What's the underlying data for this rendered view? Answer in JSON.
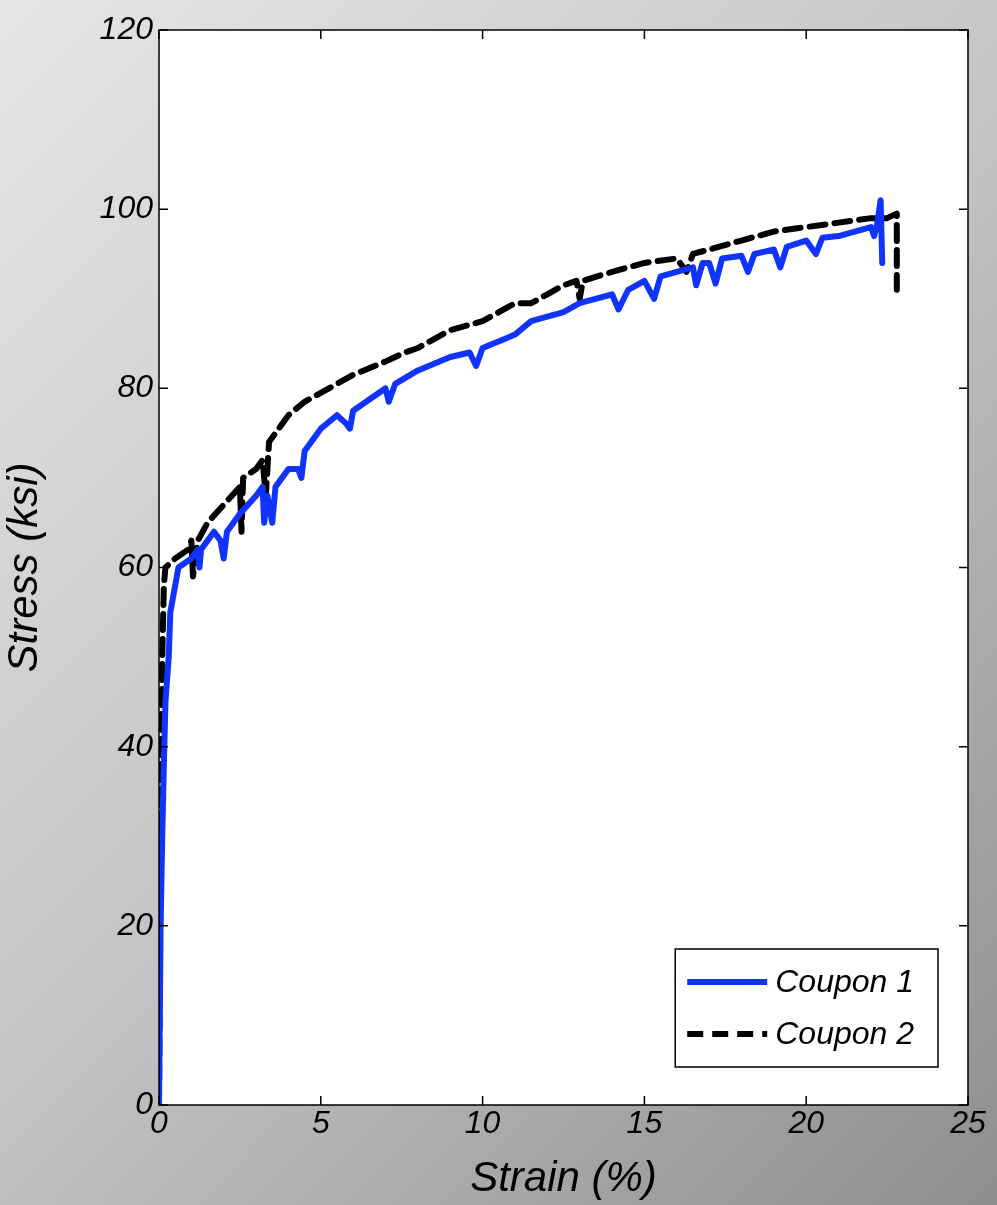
{
  "chart_data": {
    "type": "line",
    "xlabel": "Strain (%)",
    "ylabel": "Stress (ksi)",
    "xlim": [
      0,
      25
    ],
    "xticks": [
      0,
      5,
      10,
      15,
      20,
      25
    ],
    "ylim": [
      0,
      120
    ],
    "yticks": [
      0,
      20,
      40,
      60,
      80,
      100,
      120
    ],
    "grid": false,
    "legend": "bottom right",
    "marker": "none",
    "series": [
      {
        "name": "Coupon 1",
        "color": "#1133ff",
        "line_style": "solid",
        "x": [
          0,
          0.05,
          0.1,
          0.15,
          0.2,
          0.3,
          0.35,
          0.5,
          0.6,
          1.0,
          1.2,
          1.25,
          1.3,
          1.5,
          1.7,
          1.9,
          2.0,
          2.1,
          2.5,
          3.0,
          3.2,
          3.25,
          3.35,
          3.5,
          3.6,
          4.0,
          4.3,
          4.4,
          4.5,
          5.0,
          5.5,
          5.8,
          5.9,
          6.0,
          7.0,
          7.1,
          7.3,
          8.0,
          9.0,
          9.6,
          9.8,
          10,
          11,
          11.5,
          12.5,
          13,
          14,
          14.2,
          14.5,
          15,
          15.3,
          15.5,
          16,
          16.5,
          16.6,
          16.8,
          17,
          17.2,
          17.4,
          18,
          18.2,
          18.4,
          19,
          19.2,
          19.4,
          20,
          20.3,
          20.5,
          21,
          21.5,
          22,
          22.1,
          22.2,
          22.3,
          22.35
        ],
        "values": [
          0,
          20,
          30,
          38,
          45,
          50,
          55,
          58,
          60,
          61,
          62,
          60,
          62,
          63,
          64,
          63,
          61,
          64,
          66,
          68,
          69,
          65,
          68,
          65,
          69,
          71,
          71,
          70,
          73,
          75.5,
          77,
          76,
          75.5,
          77.5,
          80,
          78.5,
          80.5,
          82,
          83.5,
          84,
          82.5,
          84.5,
          86,
          87.5,
          88.5,
          89.5,
          90.5,
          88.8,
          91,
          92,
          90,
          92.5,
          93,
          93.5,
          91.5,
          94,
          94,
          91.7,
          94.5,
          94.8,
          93,
          95,
          95.5,
          93.5,
          95.8,
          96.5,
          95,
          96.8,
          97,
          97.5,
          98,
          97,
          98.5,
          101,
          94
        ]
      },
      {
        "name": "Coupon 2",
        "color": "#000000",
        "line_style": "dashed",
        "x": [
          0,
          0.05,
          0.1,
          0.15,
          0.2,
          0.5,
          0.9,
          1.0,
          1.05,
          1.2,
          1.5,
          2,
          2.5,
          2.55,
          2.6,
          3,
          3.2,
          3.3,
          3.4,
          4,
          4.5,
          5,
          6,
          7,
          7.6,
          8,
          8.5,
          9,
          9.5,
          10,
          10.5,
          11,
          11.5,
          12,
          12.5,
          12.9,
          13,
          13.1,
          14,
          15,
          16,
          16.3,
          16.5,
          17,
          18,
          19,
          20,
          21,
          22,
          22.5,
          22.8,
          22.8
        ],
        "values": [
          0,
          30,
          50,
          58,
          60,
          61,
          62,
          63,
          59,
          63,
          65,
          67,
          69,
          64,
          70,
          71,
          72,
          68,
          74,
          77,
          78.5,
          79.5,
          81.5,
          83,
          84,
          84.5,
          85.5,
          86.5,
          87,
          87.5,
          88.5,
          89.5,
          89.5,
          90.5,
          91.5,
          92,
          90,
          92,
          93,
          94,
          94.5,
          93,
          95,
          95.5,
          96.5,
          97.5,
          98,
          98.5,
          99,
          99,
          99.5,
          91
        ]
      }
    ]
  }
}
